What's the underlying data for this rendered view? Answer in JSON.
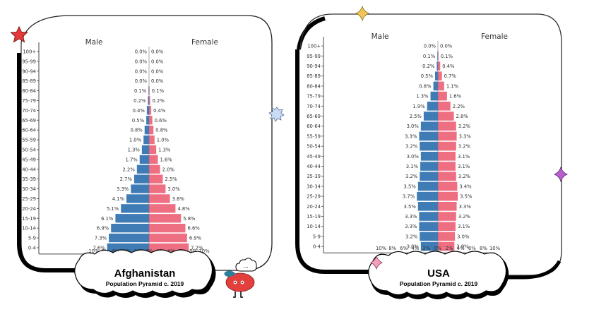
{
  "colors": {
    "male": "#3f7cb6",
    "female": "#ee6f82",
    "frame": "#000000",
    "star_red": "#e63a3a",
    "star_yellow": "#f3c65a",
    "star_blue": "#c8dcf7",
    "star_purple": "#b85fcf",
    "star_pink": "#f3a0b8",
    "mascot_body": "#e3403d",
    "mascot_leaf": "#2c7f9a"
  },
  "icons": {
    "corner_star": "star-icon",
    "sparkle_yellow": "sparkle-icon",
    "burst_blue": "burst-icon",
    "sparkle_purple": "sparkle-icon",
    "sparkle_pink": "sparkle-icon",
    "mascot": "tomato-mascot-icon",
    "thought_bubble_text": "..."
  },
  "chart_data": [
    {
      "type": "bar",
      "orientation": "horizontal-population-pyramid",
      "title": "Afghanistan",
      "subtitle": "Population Pyramid c. 2019",
      "left_label": "Male",
      "right_label": "Female",
      "categories": [
        "100+",
        "95-99",
        "90-94",
        "85-89",
        "80-84",
        "75-79",
        "70-74",
        "65-69",
        "60-64",
        "55-59",
        "50-54",
        "45-49",
        "40-44",
        "35-39",
        "30-34",
        "25-29",
        "20-24",
        "15-19",
        "10-14",
        "5-9",
        "0-4"
      ],
      "series": [
        {
          "name": "Male",
          "values": [
            0.0,
            0.0,
            0.0,
            0.0,
            0.1,
            0.2,
            0.4,
            0.5,
            0.8,
            1.0,
            1.3,
            1.7,
            2.2,
            2.7,
            3.3,
            4.1,
            5.1,
            6.1,
            6.9,
            7.3,
            7.6
          ]
        },
        {
          "name": "Female",
          "values": [
            0.0,
            0.0,
            0.0,
            0.0,
            0.1,
            0.2,
            0.4,
            0.6,
            0.8,
            1.0,
            1.3,
            1.6,
            2.0,
            2.5,
            3.0,
            3.8,
            4.8,
            5.8,
            6.6,
            6.9,
            7.2
          ]
        }
      ],
      "value_labels": {
        "Male": [
          "0.0%",
          "0.0%",
          "0.0%",
          "0.0%",
          "0.1%",
          "0.2%",
          "0.4%",
          "0.5%",
          "0.8%",
          "1.0%",
          "1.3%",
          "1.7%",
          "2.2%",
          "2.7%",
          "3.3%",
          "4.1%",
          "5.1%",
          "6.1%",
          "6.9%",
          "7.3%",
          "7.6%"
        ],
        "Female": [
          "0.0%",
          "0.0%",
          "0.0%",
          "0.0%",
          "0.1%",
          "0.2%",
          "0.4%",
          "0.6%",
          "0.8%",
          "1.0%",
          "1.3%",
          "1.6%",
          "2.0%",
          "2.5%",
          "3.0%",
          "3.8%",
          "4.8%",
          "5.8%",
          "6.6%",
          "6.9%",
          "7.2%"
        ]
      },
      "xticks": [
        "10%",
        "8%",
        "6%",
        "4%",
        "2%",
        "0%",
        "2%",
        "4%",
        "6%",
        "8%",
        "10%"
      ],
      "xlim": [
        -10,
        10
      ],
      "unit": "% of population",
      "grid": false,
      "legend": "none"
    },
    {
      "type": "bar",
      "orientation": "horizontal-population-pyramid",
      "title": "USA",
      "subtitle": "Population Pyramid c. 2019",
      "left_label": "Male",
      "right_label": "Female",
      "categories": [
        "100+",
        "95-99",
        "90-94",
        "85-89",
        "80-84",
        "75-79",
        "70-74",
        "65-69",
        "60-64",
        "55-59",
        "50-54",
        "45-49",
        "40-44",
        "35-39",
        "30-34",
        "25-29",
        "20-24",
        "15-19",
        "10-14",
        "5-9",
        "0-4"
      ],
      "series": [
        {
          "name": "Male",
          "values": [
            0.0,
            0.1,
            0.2,
            0.5,
            0.8,
            1.3,
            1.9,
            2.5,
            3.0,
            3.3,
            3.2,
            3.0,
            3.1,
            3.2,
            3.5,
            3.7,
            3.5,
            3.3,
            3.3,
            3.2,
            3.0
          ]
        },
        {
          "name": "Female",
          "values": [
            0.0,
            0.1,
            0.4,
            0.7,
            1.1,
            1.6,
            2.2,
            2.8,
            3.2,
            3.3,
            3.2,
            3.1,
            3.1,
            3.2,
            3.4,
            3.5,
            3.3,
            3.2,
            3.1,
            3.0,
            2.9
          ]
        }
      ],
      "value_labels": {
        "Male": [
          "0.0%",
          "0.1%",
          "0.2%",
          "0.5%",
          "0.8%",
          "1.3%",
          "1.9%",
          "2.5%",
          "3.0%",
          "3.3%",
          "3.2%",
          "3.0%",
          "3.1%",
          "3.2%",
          "3.5%",
          "3.7%",
          "3.5%",
          "3.3%",
          "3.3%",
          "3.2%",
          "3.0%"
        ],
        "Female": [
          "0.0%",
          "0.1%",
          "0.4%",
          "0.7%",
          "1.1%",
          "1.6%",
          "2.2%",
          "2.8%",
          "3.2%",
          "3.3%",
          "3.2%",
          "3.1%",
          "3.1%",
          "3.2%",
          "3.4%",
          "3.5%",
          "3.3%",
          "3.2%",
          "3.1%",
          "3.0%",
          "2.9%"
        ]
      },
      "xticks": [
        "10%",
        "8%",
        "6%",
        "4%",
        "2%",
        "0%",
        "2%",
        "4%",
        "6%",
        "8%",
        "10%"
      ],
      "xlim": [
        -10,
        10
      ],
      "unit": "% of population",
      "grid": false,
      "legend": "none"
    }
  ]
}
